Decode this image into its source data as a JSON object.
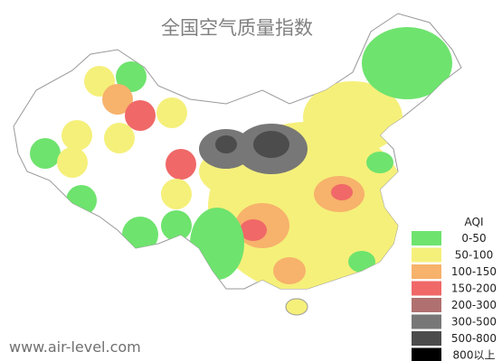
{
  "header": {
    "title": "全国空气质量指数"
  },
  "watermark": "www.air-level.com",
  "legend": {
    "title": "AQI",
    "items": [
      {
        "label": "0-50",
        "color": "#6ee36e"
      },
      {
        "label": "50-100",
        "color": "#f5f07a"
      },
      {
        "label": "100-150",
        "color": "#f7b26c"
      },
      {
        "label": "150-200",
        "color": "#f06868"
      },
      {
        "label": "200-300",
        "color": "#b07070"
      },
      {
        "label": "300-500",
        "color": "#777777"
      },
      {
        "label": "500-800",
        "color": "#4c4c4c"
      },
      {
        "label": "800以上",
        "color": "#000000"
      }
    ]
  }
}
